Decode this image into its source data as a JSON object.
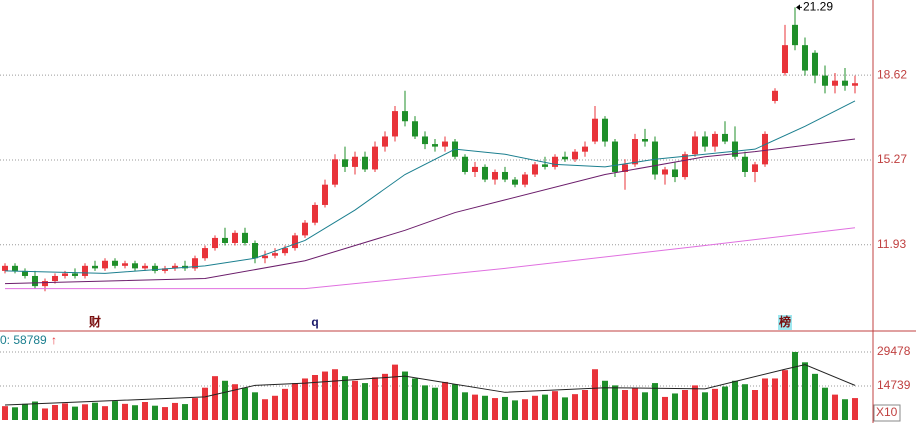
{
  "chart_data": {
    "type": "candlestick",
    "up_color": "#e8333a",
    "down_color": "#1f8f2a",
    "ylim": [
      8.57,
      21.58
    ],
    "yticks": [
      11.93,
      15.27,
      18.62
    ],
    "grid": true,
    "candles": [
      [
        10.9,
        11.2,
        10.8,
        11.1
      ],
      [
        11.1,
        11.2,
        10.8,
        10.9
      ],
      [
        10.9,
        11.0,
        10.6,
        10.7
      ],
      [
        10.7,
        10.9,
        10.2,
        10.3
      ],
      [
        10.3,
        10.6,
        10.1,
        10.5
      ],
      [
        10.5,
        10.8,
        10.4,
        10.7
      ],
      [
        10.7,
        10.9,
        10.6,
        10.8
      ],
      [
        10.8,
        11.0,
        10.6,
        10.7
      ],
      [
        10.7,
        11.2,
        10.6,
        11.1
      ],
      [
        11.1,
        11.3,
        10.9,
        11.0
      ],
      [
        11.0,
        11.4,
        10.9,
        11.3
      ],
      [
        11.3,
        11.4,
        11.0,
        11.1
      ],
      [
        11.1,
        11.3,
        11.0,
        11.2
      ],
      [
        11.2,
        11.3,
        10.9,
        11.0
      ],
      [
        11.0,
        11.2,
        10.9,
        11.1
      ],
      [
        11.1,
        11.2,
        10.8,
        10.9
      ],
      [
        10.9,
        11.1,
        10.8,
        11.0
      ],
      [
        11.0,
        11.2,
        10.9,
        11.1
      ],
      [
        11.1,
        11.3,
        10.9,
        11.0
      ],
      [
        11.0,
        11.5,
        10.9,
        11.4
      ],
      [
        11.4,
        11.9,
        11.3,
        11.8
      ],
      [
        11.8,
        12.3,
        11.7,
        12.2
      ],
      [
        12.2,
        12.6,
        11.9,
        12.0
      ],
      [
        12.0,
        12.5,
        11.9,
        12.4
      ],
      [
        12.4,
        12.6,
        11.9,
        12.0
      ],
      [
        12.0,
        12.1,
        11.2,
        11.4
      ],
      [
        11.4,
        11.7,
        11.2,
        11.5
      ],
      [
        11.5,
        11.8,
        11.4,
        11.6
      ],
      [
        11.6,
        11.9,
        11.5,
        11.8
      ],
      [
        11.8,
        12.4,
        11.7,
        12.3
      ],
      [
        12.3,
        12.9,
        12.2,
        12.8
      ],
      [
        12.8,
        13.6,
        12.7,
        13.5
      ],
      [
        13.5,
        14.5,
        13.4,
        14.3
      ],
      [
        14.3,
        15.5,
        14.2,
        15.3
      ],
      [
        15.3,
        15.8,
        14.8,
        15.0
      ],
      [
        15.0,
        15.6,
        14.7,
        15.4
      ],
      [
        15.4,
        15.6,
        14.8,
        14.9
      ],
      [
        14.9,
        16.0,
        14.8,
        15.8
      ],
      [
        15.8,
        16.4,
        15.6,
        16.2
      ],
      [
        16.2,
        17.4,
        16.0,
        17.2
      ],
      [
        17.2,
        18.0,
        16.6,
        16.8
      ],
      [
        16.8,
        17.0,
        16.1,
        16.2
      ],
      [
        16.2,
        16.4,
        15.7,
        15.9
      ],
      [
        15.9,
        16.1,
        15.6,
        15.8
      ],
      [
        15.8,
        16.2,
        15.6,
        16.0
      ],
      [
        16.0,
        16.1,
        15.3,
        15.4
      ],
      [
        15.4,
        15.5,
        14.7,
        14.8
      ],
      [
        14.8,
        15.2,
        14.6,
        15.0
      ],
      [
        15.0,
        15.1,
        14.4,
        14.5
      ],
      [
        14.5,
        14.9,
        14.3,
        14.8
      ],
      [
        14.8,
        15.0,
        14.4,
        14.5
      ],
      [
        14.5,
        14.6,
        14.2,
        14.3
      ],
      [
        14.3,
        14.8,
        14.2,
        14.7
      ],
      [
        14.7,
        15.2,
        14.6,
        15.1
      ],
      [
        15.1,
        15.4,
        14.9,
        15.0
      ],
      [
        15.0,
        15.5,
        14.9,
        15.4
      ],
      [
        15.4,
        15.6,
        15.2,
        15.3
      ],
      [
        15.3,
        15.7,
        15.2,
        15.6
      ],
      [
        15.6,
        16.0,
        15.4,
        15.8
      ],
      [
        16.0,
        17.4,
        15.9,
        16.9
      ],
      [
        16.9,
        17.0,
        15.8,
        16.0
      ],
      [
        16.0,
        16.1,
        14.6,
        14.8
      ],
      [
        14.8,
        15.3,
        14.1,
        15.1
      ],
      [
        15.1,
        16.3,
        15.0,
        16.1
      ],
      [
        16.1,
        16.5,
        15.8,
        16.0
      ],
      [
        16.0,
        16.2,
        14.5,
        14.7
      ],
      [
        14.7,
        15.0,
        14.3,
        14.9
      ],
      [
        14.9,
        15.2,
        14.4,
        14.6
      ],
      [
        14.6,
        15.6,
        14.5,
        15.5
      ],
      [
        15.5,
        16.4,
        15.4,
        16.2
      ],
      [
        16.2,
        16.4,
        15.6,
        15.8
      ],
      [
        15.8,
        16.4,
        15.6,
        16.3
      ],
      [
        16.3,
        16.8,
        15.9,
        16.0
      ],
      [
        16.0,
        16.6,
        15.3,
        15.4
      ],
      [
        15.4,
        15.6,
        14.6,
        14.8
      ],
      [
        14.8,
        15.2,
        14.4,
        15.1
      ],
      [
        15.1,
        16.4,
        15.0,
        16.3
      ],
      [
        17.6,
        18.1,
        17.5,
        18.0
      ],
      [
        18.7,
        20.6,
        18.6,
        19.8
      ],
      [
        20.6,
        21.29,
        19.6,
        19.8
      ],
      [
        19.8,
        20.1,
        18.6,
        18.8
      ],
      [
        19.5,
        19.6,
        18.3,
        18.6
      ],
      [
        18.6,
        19.0,
        17.9,
        18.2
      ],
      [
        18.2,
        18.7,
        17.9,
        18.4
      ],
      [
        18.4,
        18.9,
        18.0,
        18.2
      ],
      [
        18.2,
        18.6,
        17.9,
        18.3
      ]
    ],
    "moving_averages": [
      {
        "color": "#1b7f8f",
        "x": [
          0,
          10,
          20,
          25,
          30,
          35,
          40,
          45,
          50,
          55,
          60,
          65,
          70,
          75,
          80,
          85
        ],
        "values": [
          10.9,
          10.8,
          11.1,
          11.4,
          12.1,
          13.3,
          14.7,
          15.7,
          15.5,
          15.1,
          15.0,
          15.3,
          15.5,
          15.7,
          16.6,
          17.6
        ]
      },
      {
        "color": "#6b1d6b",
        "x": [
          0,
          20,
          30,
          40,
          45,
          50,
          60,
          70,
          75,
          85
        ],
        "values": [
          10.4,
          10.6,
          11.3,
          12.5,
          13.2,
          13.7,
          14.7,
          15.4,
          15.6,
          16.1
        ]
      },
      {
        "color": "#e070e0",
        "x": [
          0,
          30,
          50,
          70,
          85
        ],
        "values": [
          10.2,
          10.2,
          11.0,
          11.9,
          12.6
        ]
      }
    ],
    "markers": [
      {
        "text": "财",
        "candle": 9
      },
      {
        "text": "q",
        "candle": 31
      },
      {
        "text": "榜",
        "candle": 78
      }
    ],
    "volume": {
      "label": "0: 58789",
      "arrow": "↑",
      "unit": "X10",
      "y2lim": [
        0,
        37700
      ],
      "y2ticks": [
        14739,
        29478
      ],
      "values": [
        6000,
        5500,
        7000,
        8000,
        5000,
        6500,
        7200,
        5800,
        6800,
        7500,
        6000,
        8200,
        7000,
        6400,
        7800,
        6200,
        5600,
        7400,
        6900,
        9500,
        14000,
        19000,
        17000,
        15500,
        14000,
        12000,
        9000,
        10500,
        13500,
        16000,
        18000,
        19500,
        21000,
        22000,
        19000,
        17000,
        16000,
        18500,
        20000,
        24000,
        21000,
        18000,
        15000,
        14000,
        16500,
        15500,
        12000,
        11000,
        10500,
        9500,
        10000,
        8500,
        9000,
        10500,
        11000,
        12500,
        9800,
        11200,
        13000,
        22000,
        17000,
        15000,
        13000,
        14000,
        12000,
        16000,
        10000,
        11500,
        13000,
        15000,
        12000,
        13500,
        14500,
        17000,
        15500,
        13000,
        18000,
        18000,
        21600,
        29478,
        25000,
        20000,
        14000,
        11000,
        9000,
        9500
      ],
      "ma": {
        "color": "#222222",
        "x": [
          0,
          20,
          25,
          30,
          40,
          50,
          60,
          70,
          78,
          80,
          85
        ],
        "values": [
          6500,
          10000,
          15000,
          16000,
          19000,
          12000,
          14000,
          13500,
          22000,
          24000,
          15000
        ]
      }
    }
  }
}
